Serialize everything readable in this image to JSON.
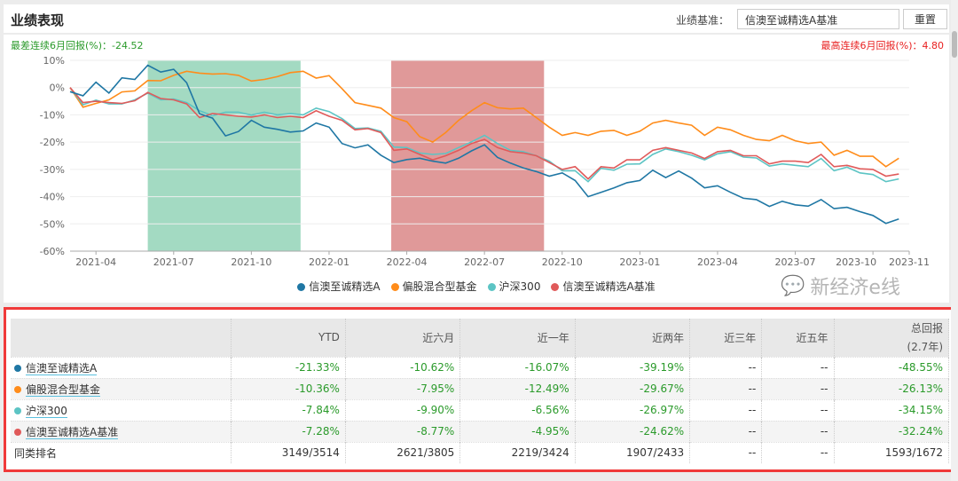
{
  "header": {
    "title": "业绩表现",
    "benchmark_label": "业绩基准：",
    "benchmark_value": "信澳至诚精选A基准",
    "reset_label": "重置"
  },
  "stats": {
    "worst": "最差连续6月回报(%)：-24.52",
    "best": "最高连续6月回报(%)：4.80"
  },
  "chart_data": {
    "type": "line",
    "x_unit": "months since 2021-03",
    "x_start": 0,
    "x_step": 0.5,
    "xlim": [
      0,
      32.4
    ],
    "ylim": [
      -60,
      10
    ],
    "yticks": [
      10,
      0,
      -10,
      -20,
      -30,
      -40,
      -50,
      -60
    ],
    "ytick_labels": [
      "10%",
      "0%",
      "-10%",
      "-20%",
      "-30%",
      "-40%",
      "-50%",
      "-60%"
    ],
    "xticks": [
      1,
      4,
      7,
      10,
      13,
      16,
      19,
      22,
      25,
      28,
      31,
      32.4
    ],
    "xtick_labels": [
      "2021-04",
      "2021-07",
      "2021-10",
      "2022-01",
      "2022-04",
      "2022-07",
      "2022-10",
      "2023-01",
      "2023-04",
      "2023-07",
      "2023-10",
      "2023-11"
    ],
    "grid": true,
    "legend_position": "bottom",
    "shaded": [
      {
        "from": 3.0,
        "to": 8.9,
        "color": "#66c299"
      },
      {
        "from": 12.4,
        "to": 18.3,
        "color": "#cc5555"
      }
    ],
    "series": [
      {
        "name": "信澳至诚精选A",
        "color": "#1f77a4",
        "values": [
          -1.5,
          -3.0,
          2.0,
          -2.0,
          3.6,
          3.0,
          8.2,
          5.7,
          6.7,
          1.8,
          -9.6,
          -11.2,
          -17.7,
          -16.1,
          -12.0,
          -14.5,
          -15.3,
          -16.3,
          -15.9,
          -13.0,
          -14.5,
          -20.5,
          -22.1,
          -21.0,
          -24.8,
          -27.5,
          -26.4,
          -25.9,
          -27.0,
          -27.7,
          -25.9,
          -23.2,
          -21.0,
          -25.6,
          -27.7,
          -29.5,
          -30.8,
          -32.5,
          -31.3,
          -34.1,
          -40.0,
          -38.4,
          -36.8,
          -34.9,
          -34.1,
          -30.3,
          -33.0,
          -30.6,
          -33.2,
          -36.8,
          -36.0,
          -38.4,
          -40.6,
          -41.1,
          -43.6,
          -41.7,
          -43.0,
          -43.5,
          -41.1,
          -44.4,
          -43.9,
          -45.5,
          -46.9,
          -49.8,
          -48.2
        ]
      },
      {
        "name": "偏股混合型基金",
        "color": "#ff8c1a",
        "values": [
          0,
          -7.2,
          -5.8,
          -4.5,
          -1.6,
          -1.2,
          2.6,
          2.5,
          4.5,
          6.0,
          5.3,
          5.0,
          5.1,
          4.5,
          2.4,
          3.0,
          4.0,
          5.5,
          6.0,
          3.5,
          4.4,
          -0.4,
          -5.5,
          -6.5,
          -7.5,
          -11.0,
          -12.5,
          -18.0,
          -20.0,
          -16.5,
          -12.0,
          -8.5,
          -5.5,
          -7.4,
          -7.8,
          -7.5,
          -11.0,
          -14.5,
          -17.5,
          -16.5,
          -17.5,
          -16.0,
          -15.7,
          -17.5,
          -16.0,
          -13.0,
          -12.0,
          -13.0,
          -13.8,
          -17.5,
          -14.5,
          -15.5,
          -17.5,
          -19.0,
          -19.5,
          -17.5,
          -19.5,
          -20.5,
          -20.0,
          -24.8,
          -23.0,
          -25.2,
          -25.2,
          -29.0,
          -25.9
        ]
      },
      {
        "name": "沪深300",
        "color": "#5cc4c4",
        "values": [
          0,
          -6.3,
          -4.6,
          -6.0,
          -6.0,
          -4.5,
          -2.0,
          -4.5,
          -4.2,
          -5.5,
          -8.5,
          -10.3,
          -9.0,
          -9.0,
          -10.1,
          -9.0,
          -10.0,
          -9.5,
          -10.0,
          -7.5,
          -8.8,
          -11.4,
          -15.0,
          -14.8,
          -16.0,
          -21.8,
          -22.0,
          -24.0,
          -24.5,
          -24.2,
          -22.0,
          -19.9,
          -17.5,
          -20.5,
          -23.0,
          -23.5,
          -25.0,
          -27.0,
          -30.5,
          -30.5,
          -34.5,
          -29.6,
          -30.3,
          -28.1,
          -28.0,
          -24.5,
          -22.5,
          -23.5,
          -24.8,
          -26.5,
          -24.3,
          -23.5,
          -25.5,
          -25.8,
          -28.8,
          -28.0,
          -28.5,
          -29.0,
          -26.0,
          -30.5,
          -29.2,
          -31.3,
          -31.9,
          -34.5,
          -33.5
        ]
      },
      {
        "name": "信澳至诚精选A基准",
        "color": "#e05a5a",
        "values": [
          0,
          -5.5,
          -5.0,
          -5.5,
          -5.8,
          -4.8,
          -1.8,
          -4.0,
          -4.5,
          -6.0,
          -11.0,
          -9.5,
          -10.0,
          -10.5,
          -10.8,
          -10.0,
          -11.0,
          -10.5,
          -11.0,
          -8.5,
          -10.5,
          -12.0,
          -15.5,
          -15.0,
          -16.5,
          -23.0,
          -22.5,
          -24.5,
          -26.5,
          -25.0,
          -23.0,
          -20.5,
          -19.0,
          -22.0,
          -23.5,
          -24.0,
          -25.0,
          -27.5,
          -30.0,
          -29.0,
          -33.5,
          -29.0,
          -29.5,
          -26.5,
          -26.5,
          -23.0,
          -22.0,
          -23.0,
          -24.0,
          -26.0,
          -23.5,
          -23.0,
          -25.0,
          -25.0,
          -28.0,
          -27.0,
          -27.0,
          -27.5,
          -24.5,
          -29.0,
          -28.5,
          -29.8,
          -30.0,
          -32.5,
          -31.7
        ]
      }
    ]
  },
  "table": {
    "headers": [
      "YTD",
      "近六月",
      "近一年",
      "近两年",
      "近三年",
      "近五年",
      "总回报",
      "(2.7年)"
    ],
    "rows": [
      {
        "name": "信澳至诚精选A",
        "color": "#1f77a4",
        "values": [
          "-21.33%",
          "-10.62%",
          "-16.07%",
          "-39.19%",
          "--",
          "--",
          "-48.55%"
        ]
      },
      {
        "name": "偏股混合型基金",
        "color": "#ff8c1a",
        "values": [
          "-10.36%",
          "-7.95%",
          "-12.49%",
          "-29.67%",
          "--",
          "--",
          "-26.13%"
        ]
      },
      {
        "name": "沪深300",
        "color": "#5cc4c4",
        "values": [
          "-7.84%",
          "-9.90%",
          "-6.56%",
          "-26.97%",
          "--",
          "--",
          "-34.15%"
        ]
      },
      {
        "name": "信澳至诚精选A基准",
        "color": "#e05a5a",
        "values": [
          "-7.28%",
          "-8.77%",
          "-4.95%",
          "-24.62%",
          "--",
          "--",
          "-32.24%"
        ]
      }
    ],
    "rank": {
      "label": "同类排名",
      "values": [
        "3149/3514",
        "2621/3805",
        "2219/3424",
        "1907/2433",
        "--",
        "--",
        "1593/1672"
      ]
    }
  },
  "watermark": "新经济e线"
}
